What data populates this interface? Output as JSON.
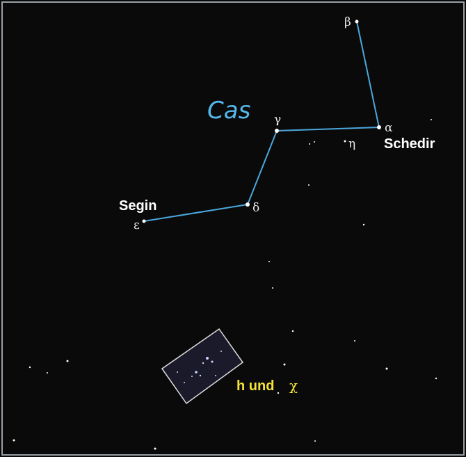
{
  "constellation": "Cas",
  "stars": [
    {
      "letter": "β"
    },
    {
      "letter": "α",
      "name": "Schedir"
    },
    {
      "letter": "γ"
    },
    {
      "letter": "η"
    },
    {
      "letter": "δ"
    },
    {
      "letter": "ε",
      "name": "Segin"
    }
  ],
  "cluster": {
    "label": "h und",
    "letter": "χ"
  }
}
